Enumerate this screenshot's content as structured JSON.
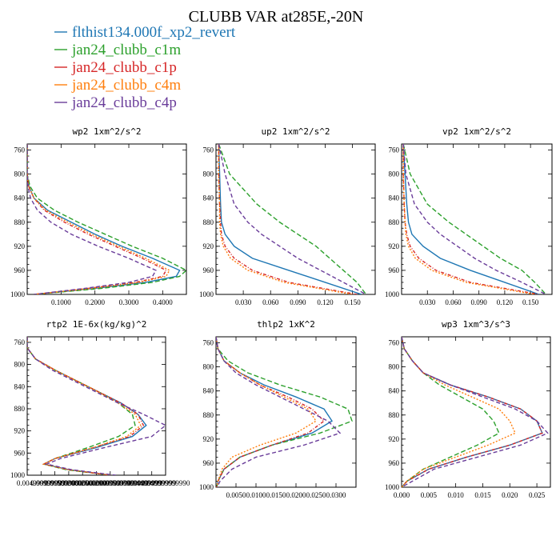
{
  "title": "CLUBB VAR at285E,-20N",
  "legend": [
    {
      "label": "flthist134.000f_xp2_revert",
      "color": "#1f77b4",
      "dash": ""
    },
    {
      "label": "jan24_clubb_c1m",
      "color": "#2ca02c",
      "dash": "6,3"
    },
    {
      "label": "jan24_clubb_c1p",
      "color": "#d62728",
      "dash": "4,2,1,2"
    },
    {
      "label": "jan24_clubb_c4m",
      "color": "#ff7f0e",
      "dash": "2,2"
    },
    {
      "label": "jan24_clubb_c4p",
      "color": "#6a3d9a",
      "dash": "5,3"
    }
  ],
  "chart_data": [
    {
      "type": "line",
      "title": "wp2  1xm^2/s^2",
      "ylim": [
        1000,
        750
      ],
      "xlim": [
        0,
        0.47
      ],
      "yticks": [
        "760",
        "800",
        "840",
        "880",
        "920",
        "960",
        "1000"
      ],
      "xticks": [
        "0.1000",
        "0.2000",
        "0.3000",
        "0.4000"
      ],
      "y": [
        750,
        800,
        820,
        840,
        860,
        880,
        900,
        920,
        940,
        960,
        970,
        980,
        990,
        1000
      ],
      "series": [
        {
          "values": [
            0,
            0.0,
            0.005,
            0.02,
            0.06,
            0.13,
            0.2,
            0.28,
            0.37,
            0.45,
            0.44,
            0.35,
            0.2,
            0.02
          ]
        },
        {
          "values": [
            0,
            0.0,
            0.008,
            0.03,
            0.08,
            0.15,
            0.23,
            0.31,
            0.4,
            0.47,
            0.45,
            0.37,
            0.22,
            0.02
          ]
        },
        {
          "values": [
            0,
            0.0,
            0.004,
            0.02,
            0.05,
            0.11,
            0.18,
            0.26,
            0.34,
            0.41,
            0.4,
            0.32,
            0.18,
            0.02
          ]
        },
        {
          "values": [
            0,
            0.0,
            0.004,
            0.02,
            0.055,
            0.12,
            0.19,
            0.27,
            0.35,
            0.42,
            0.41,
            0.33,
            0.19,
            0.02
          ]
        },
        {
          "values": [
            0,
            0.0,
            0.002,
            0.01,
            0.03,
            0.07,
            0.13,
            0.21,
            0.3,
            0.38,
            0.37,
            0.3,
            0.17,
            0.02
          ]
        }
      ]
    },
    {
      "type": "line",
      "title": "up2  1xm^2/s^2",
      "ylim": [
        1000,
        750
      ],
      "xlim": [
        0,
        0.175
      ],
      "yticks": [
        "760",
        "800",
        "840",
        "880",
        "920",
        "960",
        "1000"
      ],
      "xticks": [
        "0.030",
        "0.060",
        "0.090",
        "0.120",
        "0.150"
      ],
      "y": [
        750,
        800,
        850,
        880,
        900,
        920,
        940,
        960,
        980,
        1000
      ],
      "series": [
        {
          "values": [
            0.003,
            0.004,
            0.005,
            0.006,
            0.01,
            0.02,
            0.04,
            0.08,
            0.12,
            0.16
          ]
        },
        {
          "values": [
            0.003,
            0.015,
            0.045,
            0.07,
            0.09,
            0.11,
            0.125,
            0.14,
            0.155,
            0.165
          ]
        },
        {
          "values": [
            0.003,
            0.003,
            0.004,
            0.005,
            0.006,
            0.01,
            0.02,
            0.04,
            0.08,
            0.155
          ]
        },
        {
          "values": [
            0.003,
            0.003,
            0.004,
            0.004,
            0.005,
            0.008,
            0.016,
            0.035,
            0.075,
            0.15
          ]
        },
        {
          "values": [
            0.003,
            0.01,
            0.02,
            0.035,
            0.05,
            0.07,
            0.09,
            0.115,
            0.14,
            0.165
          ]
        }
      ]
    },
    {
      "type": "line",
      "title": "vp2  1xm^2/s^2",
      "ylim": [
        1000,
        750
      ],
      "xlim": [
        0,
        0.175
      ],
      "yticks": [
        "760",
        "800",
        "840",
        "880",
        "920",
        "960",
        "1000"
      ],
      "xticks": [
        "0.030",
        "0.060",
        "0.090",
        "0.120",
        "0.150"
      ],
      "y": [
        750,
        800,
        850,
        880,
        900,
        920,
        940,
        960,
        980,
        1000
      ],
      "series": [
        {
          "values": [
            0.002,
            0.004,
            0.006,
            0.008,
            0.012,
            0.025,
            0.045,
            0.08,
            0.12,
            0.16
          ]
        },
        {
          "values": [
            0.002,
            0.01,
            0.03,
            0.055,
            0.075,
            0.095,
            0.115,
            0.14,
            0.155,
            0.168
          ]
        },
        {
          "values": [
            0.002,
            0.002,
            0.003,
            0.004,
            0.006,
            0.01,
            0.02,
            0.04,
            0.08,
            0.16
          ]
        },
        {
          "values": [
            0.002,
            0.002,
            0.003,
            0.004,
            0.005,
            0.008,
            0.016,
            0.035,
            0.075,
            0.155
          ]
        },
        {
          "values": [
            0.002,
            0.005,
            0.015,
            0.03,
            0.045,
            0.065,
            0.085,
            0.11,
            0.14,
            0.168
          ]
        }
      ]
    },
    {
      "type": "line",
      "title": "rtp2  1E-6x(kg/kg)^2",
      "ylim": [
        1000,
        750
      ],
      "xlim": [
        0,
        0.05
      ],
      "yticks": [
        "760",
        "800",
        "840",
        "880",
        "920",
        "960",
        "1000"
      ],
      "xticks": [
        "0.004999999999",
        "0.009999999999",
        "0.015000000000",
        "0.020000000000",
        "0.025000000000",
        "0.029999999999",
        "0.035000000000",
        "0.039999999999",
        "0.044999999999",
        "0.049999999990"
      ],
      "y": [
        750,
        770,
        790,
        810,
        830,
        850,
        870,
        890,
        910,
        930,
        950,
        970,
        980,
        990,
        1000
      ],
      "series": [
        {
          "values": [
            0.0,
            0.0,
            0.003,
            0.01,
            0.018,
            0.026,
            0.034,
            0.04,
            0.043,
            0.038,
            0.025,
            0.01,
            0.006,
            0.015,
            0.03
          ]
        },
        {
          "values": [
            0.0,
            0.0,
            0.003,
            0.01,
            0.018,
            0.026,
            0.033,
            0.038,
            0.039,
            0.033,
            0.022,
            0.01,
            0.006,
            0.014,
            0.03
          ]
        },
        {
          "values": [
            0.0,
            0.0,
            0.003,
            0.01,
            0.018,
            0.026,
            0.034,
            0.04,
            0.042,
            0.037,
            0.024,
            0.01,
            0.006,
            0.015,
            0.03
          ]
        },
        {
          "values": [
            0.0,
            0.0,
            0.003,
            0.01,
            0.018,
            0.026,
            0.033,
            0.039,
            0.041,
            0.036,
            0.024,
            0.01,
            0.006,
            0.015,
            0.03
          ]
        },
        {
          "values": [
            0.0,
            0.0,
            0.003,
            0.009,
            0.017,
            0.025,
            0.033,
            0.042,
            0.05,
            0.045,
            0.028,
            0.012,
            0.007,
            0.016,
            0.032
          ]
        }
      ]
    },
    {
      "type": "line",
      "title": "thlp2  1xK^2",
      "ylim": [
        1000,
        750
      ],
      "xlim": [
        0,
        0.035
      ],
      "yticks": [
        "760",
        "800",
        "840",
        "880",
        "920",
        "960",
        "1000"
      ],
      "xticks": [
        "0.0050",
        "0.0100",
        "0.0150",
        "0.0200",
        "0.0250",
        "0.0300"
      ],
      "y": [
        750,
        770,
        790,
        810,
        830,
        850,
        870,
        890,
        910,
        930,
        950,
        970,
        990,
        1000
      ],
      "series": [
        {
          "values": [
            0.0,
            0.0005,
            0.002,
            0.006,
            0.012,
            0.02,
            0.027,
            0.029,
            0.024,
            0.014,
            0.006,
            0.002,
            0.0005,
            0.0002
          ]
        },
        {
          "values": [
            0.0,
            0.0005,
            0.003,
            0.008,
            0.016,
            0.026,
            0.033,
            0.034,
            0.026,
            0.014,
            0.006,
            0.002,
            0.0005,
            0.0002
          ]
        },
        {
          "values": [
            0.0,
            0.0005,
            0.002,
            0.006,
            0.011,
            0.018,
            0.024,
            0.027,
            0.023,
            0.014,
            0.006,
            0.002,
            0.0005,
            0.0002
          ]
        },
        {
          "values": [
            0.0,
            0.0005,
            0.002,
            0.006,
            0.011,
            0.017,
            0.023,
            0.025,
            0.02,
            0.011,
            0.004,
            0.0015,
            0.0005,
            0.0002
          ]
        },
        {
          "values": [
            0.0,
            0.0005,
            0.002,
            0.005,
            0.01,
            0.016,
            0.022,
            0.028,
            0.031,
            0.022,
            0.01,
            0.004,
            0.001,
            0.0003
          ]
        }
      ]
    },
    {
      "type": "line",
      "title": "wp3  1xm^3/s^3",
      "ylim": [
        1000,
        750
      ],
      "xlim": [
        0,
        0.0275
      ],
      "yticks": [
        "760",
        "800",
        "840",
        "880",
        "920",
        "960",
        "1000"
      ],
      "xticks": [
        "0.000",
        "0.005",
        "0.010",
        "0.015",
        "0.020",
        "0.025"
      ],
      "y": [
        750,
        770,
        790,
        810,
        830,
        850,
        870,
        890,
        910,
        930,
        950,
        970,
        990,
        1000
      ],
      "series": [
        {
          "values": [
            0.0,
            0.0005,
            0.002,
            0.004,
            0.009,
            0.016,
            0.022,
            0.025,
            0.026,
            0.02,
            0.012,
            0.005,
            0.001,
            0.0
          ]
        },
        {
          "values": [
            0.0,
            0.0005,
            0.002,
            0.004,
            0.007,
            0.011,
            0.015,
            0.017,
            0.018,
            0.014,
            0.009,
            0.004,
            0.001,
            0.0
          ]
        },
        {
          "values": [
            0.0,
            0.0005,
            0.002,
            0.004,
            0.009,
            0.016,
            0.022,
            0.025,
            0.026,
            0.02,
            0.012,
            0.005,
            0.001,
            0.0
          ]
        },
        {
          "values": [
            0.0,
            0.0005,
            0.002,
            0.004,
            0.008,
            0.013,
            0.018,
            0.02,
            0.021,
            0.016,
            0.01,
            0.004,
            0.001,
            0.0
          ]
        },
        {
          "values": [
            0.0,
            0.0005,
            0.002,
            0.004,
            0.009,
            0.015,
            0.021,
            0.025,
            0.027,
            0.022,
            0.014,
            0.006,
            0.002,
            0.0
          ]
        }
      ]
    }
  ]
}
